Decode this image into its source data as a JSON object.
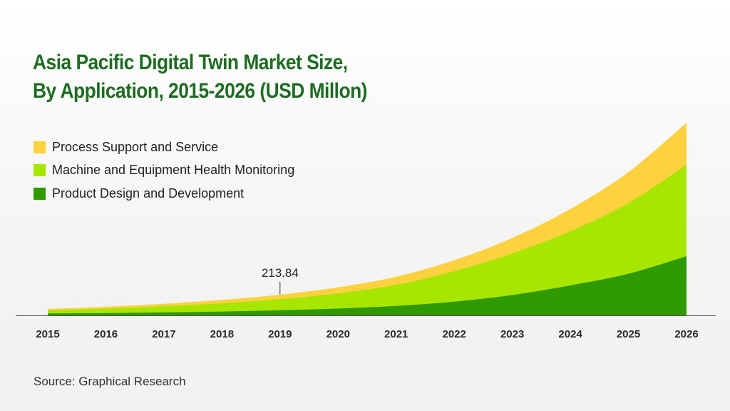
{
  "title_line1": "Asia Pacific Digital Twin Market Size,",
  "title_line2": "By Application, 2015-2026 (USD Millon)",
  "source": "Source: Graphical Research",
  "chart_data": {
    "type": "area",
    "stacked": true,
    "title": "Asia Pacific Digital Twin Market Size, By Application, 2015-2026 (USD Millon)",
    "categories": [
      "2015",
      "2016",
      "2017",
      "2018",
      "2019",
      "2020",
      "2021",
      "2022",
      "2023",
      "2024",
      "2025",
      "2026"
    ],
    "series": [
      {
        "name": "Product Design and Development",
        "color": "#2e9a00",
        "values": [
          20,
          24,
          31,
          40,
          53,
          71,
          98,
          142,
          210,
          310,
          430,
          612
        ]
      },
      {
        "name": "Machine and Equipment Health Monitoring",
        "color": "#a6e600",
        "values": [
          32,
          46,
          63,
          85,
          115,
          157,
          217,
          314,
          430,
          560,
          730,
          943
        ]
      },
      {
        "name": "Process Support and Service",
        "color": "#fdd23e",
        "values": [
          14,
          19,
          26,
          35,
          46,
          62,
          85,
          114,
          160,
          230,
          320,
          435
        ]
      }
    ],
    "annotations": [
      {
        "category": "2019",
        "label": "213.84"
      }
    ],
    "ylim": [
      0,
      2000
    ],
    "grid": false,
    "legend_position": "top-left",
    "y_axis_shown": false
  }
}
